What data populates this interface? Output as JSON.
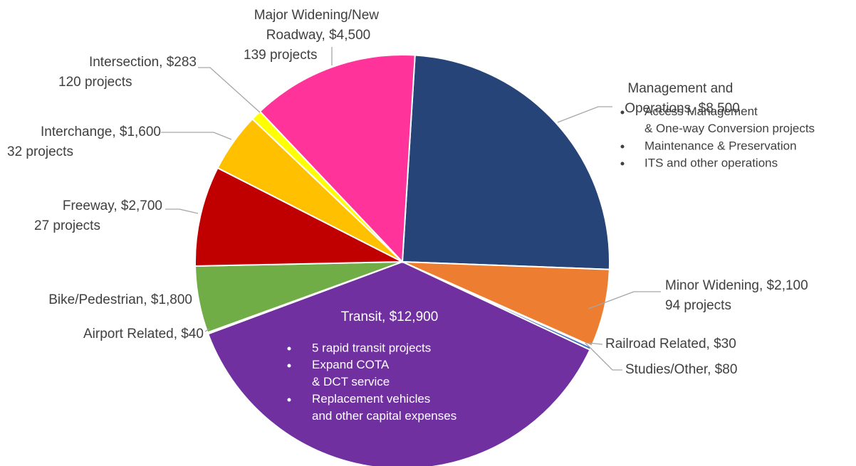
{
  "chart_data": {
    "type": "pie",
    "values": [
      8500,
      2100,
      30,
      80,
      12900,
      40,
      1800,
      2700,
      1600,
      283,
      4500
    ],
    "value_labels": [
      "Management and Operations, $8,500",
      "Minor Widening, $2,100",
      "Railroad Related, $30",
      "Studies/Other, $80",
      "Transit, $12,900",
      "Airport Related, $40",
      "Bike/Pedestrian, $1,800",
      "Freeway, $2,700",
      "Interchange, $1,600",
      "Intersection, $283",
      "Major Widening/New Roadway, $4,500"
    ],
    "colors": [
      "#264478",
      "#ed7d31",
      "#a5a5a5",
      "#4472c4",
      "#7030a0",
      "#5b9bd5",
      "#70ad47",
      "#c00000",
      "#ffc000",
      "#ffff00",
      "#ff3399"
    ],
    "projects": [
      null,
      "94 projects",
      null,
      null,
      null,
      null,
      null,
      "27 projects",
      "32 projects",
      "120 projects",
      "139 projects"
    ],
    "notes": [
      [
        "Access Management & One-way Conversion projects",
        "Maintenance & Preservation",
        "ITS and other operations"
      ],
      null,
      null,
      null,
      [
        "5 rapid transit projects",
        "Expand COTA & DCT service",
        "Replacement vehicles and other capital expenses"
      ],
      null,
      null,
      null,
      null,
      null,
      null
    ]
  }
}
